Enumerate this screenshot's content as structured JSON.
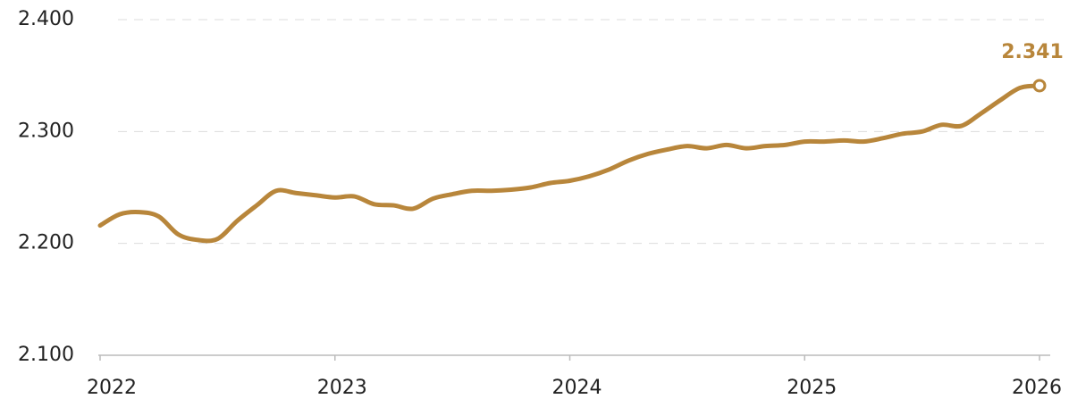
{
  "chart_data": {
    "type": "line",
    "x": [
      2022,
      2022.083,
      2022.167,
      2022.25,
      2022.333,
      2022.417,
      2022.5,
      2022.583,
      2022.667,
      2022.75,
      2022.833,
      2022.917,
      2023,
      2023.083,
      2023.167,
      2023.25,
      2023.333,
      2023.417,
      2023.5,
      2023.583,
      2023.667,
      2023.75,
      2023.833,
      2023.917,
      2024,
      2024.083,
      2024.167,
      2024.25,
      2024.333,
      2024.417,
      2024.5,
      2024.583,
      2024.667,
      2024.75,
      2024.833,
      2024.917,
      2025,
      2025.083,
      2025.167,
      2025.25,
      2025.333,
      2025.417,
      2025.5,
      2025.583,
      2025.667,
      2025.75,
      2025.833,
      2025.917,
      2026
    ],
    "series": [
      {
        "color": "#b8863b",
        "values": [
          2.216,
          2.226,
          2.228,
          2.224,
          2.208,
          2.203,
          2.204,
          2.22,
          2.234,
          2.247,
          2.245,
          2.243,
          2.241,
          2.242,
          2.235,
          2.234,
          2.231,
          2.24,
          2.244,
          2.247,
          2.247,
          2.248,
          2.25,
          2.254,
          2.256,
          2.26,
          2.266,
          2.274,
          2.28,
          2.284,
          2.287,
          2.285,
          2.288,
          2.285,
          2.287,
          2.288,
          2.291,
          2.291,
          2.292,
          2.291,
          2.294,
          2.298,
          2.3,
          2.306,
          2.305,
          2.316,
          2.328,
          2.339,
          2.341
        ]
      }
    ],
    "xlim": [
      2022,
      2026
    ],
    "xticks": [
      2022,
      2023,
      2024,
      2025,
      2026
    ],
    "ylim": [
      2.1,
      2.4
    ],
    "yticks": [
      {
        "value": 2.1,
        "label": "2.100"
      },
      {
        "value": 2.2,
        "label": "2.200"
      },
      {
        "value": 2.3,
        "label": "2.300"
      },
      {
        "value": 2.4,
        "label": "2.400"
      }
    ],
    "grid": true
  }
}
